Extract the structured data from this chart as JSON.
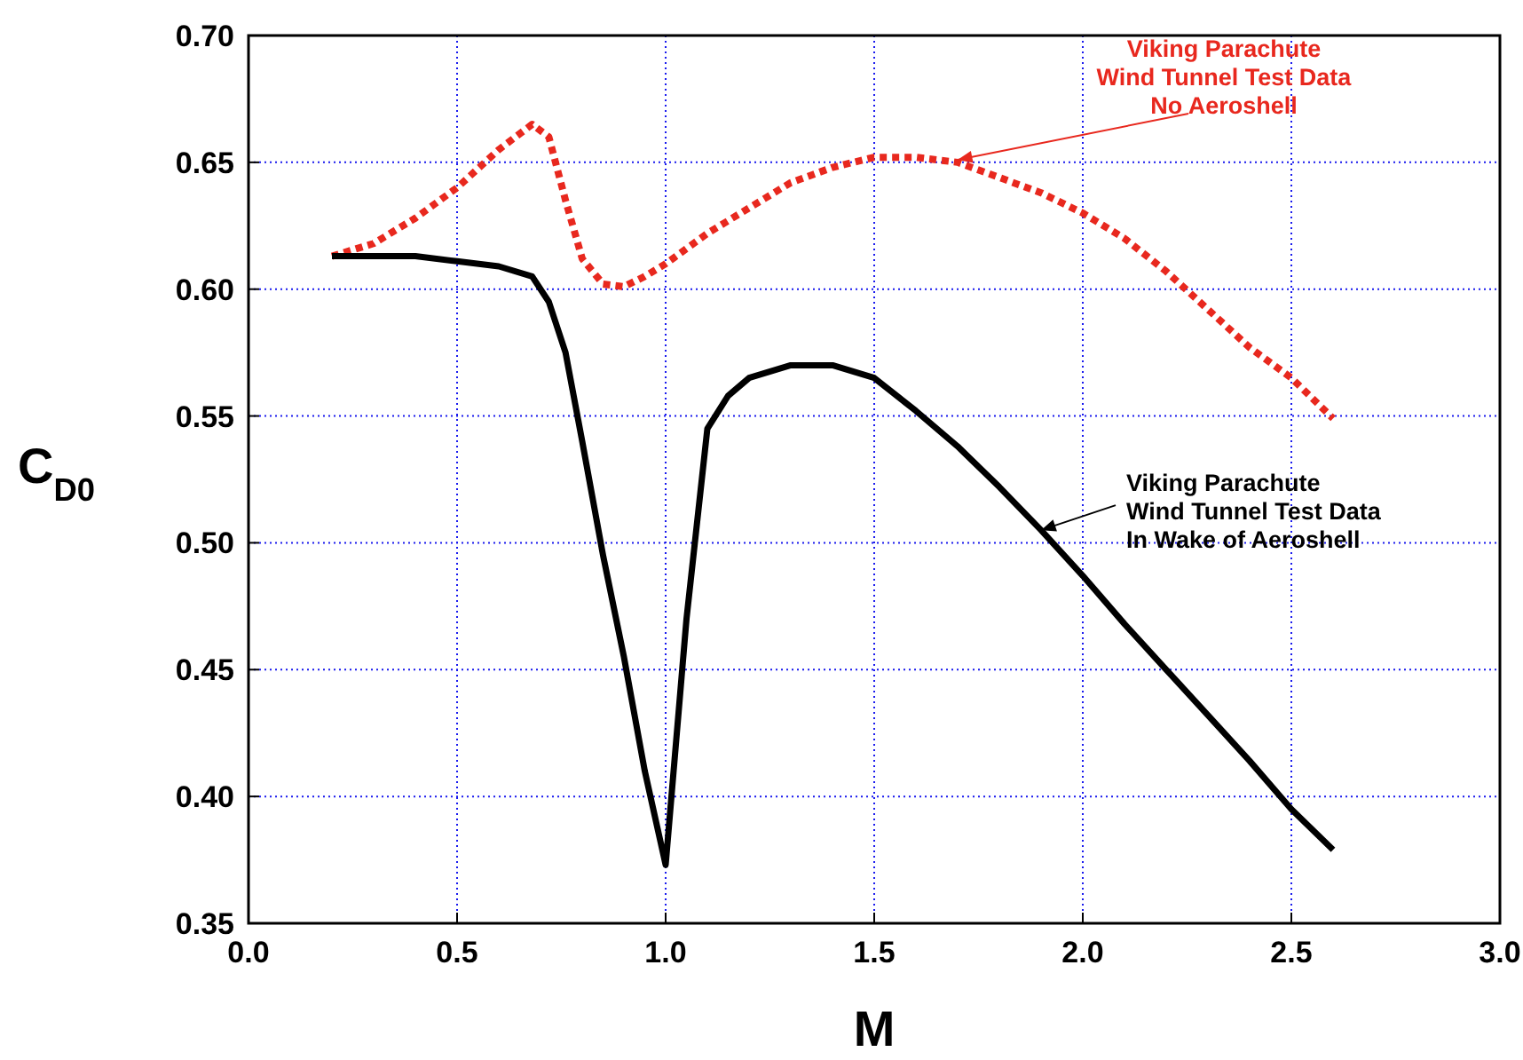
{
  "chart_data": {
    "type": "line",
    "xlabel": "M",
    "ylabel": "C$_{D0}$",
    "xlim": [
      0,
      3
    ],
    "ylim": [
      0.35,
      0.7
    ],
    "xticks": [
      {
        "value": 0,
        "label": "0.0"
      },
      {
        "value": 0.5,
        "label": "0.5"
      },
      {
        "value": 1,
        "label": "1.0"
      },
      {
        "value": 1.5,
        "label": "1.5"
      },
      {
        "value": 2,
        "label": "2.0"
      },
      {
        "value": 2.5,
        "label": "2.5"
      },
      {
        "value": 3,
        "label": "3.0"
      }
    ],
    "yticks": [
      {
        "value": 0.35,
        "label": "0.35"
      },
      {
        "value": 0.4,
        "label": "0.40"
      },
      {
        "value": 0.45,
        "label": "0.45"
      },
      {
        "value": 0.5,
        "label": "0.50"
      },
      {
        "value": 0.55,
        "label": "0.55"
      },
      {
        "value": 0.6,
        "label": "0.60"
      },
      {
        "value": 0.65,
        "label": "0.65"
      },
      {
        "value": 0.7,
        "label": "0.70"
      }
    ],
    "grid": true,
    "series": [
      {
        "color": "#e8281e",
        "line_style": "dotted",
        "x": [
          0.2,
          0.3,
          0.4,
          0.5,
          0.6,
          0.68,
          0.72,
          0.76,
          0.8,
          0.85,
          0.9,
          0.95,
          1.0,
          1.1,
          1.2,
          1.3,
          1.4,
          1.5,
          1.6,
          1.7,
          1.8,
          1.9,
          2.0,
          2.1,
          2.2,
          2.3,
          2.4,
          2.5,
          2.6
        ],
        "values": [
          0.613,
          0.618,
          0.628,
          0.64,
          0.655,
          0.665,
          0.66,
          0.635,
          0.612,
          0.602,
          0.601,
          0.605,
          0.61,
          0.622,
          0.632,
          0.642,
          0.648,
          0.652,
          0.652,
          0.65,
          0.644,
          0.638,
          0.63,
          0.62,
          0.607,
          0.592,
          0.577,
          0.565,
          0.549
        ]
      },
      {
        "color": "#000000",
        "line_style": "solid",
        "x": [
          0.2,
          0.4,
          0.5,
          0.6,
          0.68,
          0.72,
          0.76,
          0.8,
          0.85,
          0.9,
          0.95,
          1.0,
          1.05,
          1.1,
          1.15,
          1.2,
          1.3,
          1.4,
          1.5,
          1.6,
          1.7,
          1.8,
          1.9,
          2.0,
          2.1,
          2.2,
          2.3,
          2.4,
          2.5,
          2.6
        ],
        "values": [
          0.613,
          0.613,
          0.611,
          0.609,
          0.605,
          0.595,
          0.575,
          0.54,
          0.495,
          0.455,
          0.41,
          0.373,
          0.47,
          0.545,
          0.558,
          0.565,
          0.57,
          0.57,
          0.565,
          0.552,
          0.538,
          0.522,
          0.505,
          0.487,
          0.468,
          0.45,
          0.432,
          0.414,
          0.395,
          0.379
        ]
      }
    ],
    "annotations": [
      {
        "text": "Viking Parachute\nWind Tunnel Test Data\nNo Aeroshell",
        "x": 1.7,
        "y": 0.651
      },
      {
        "text": "Viking Parachute\nWind Tunnel Test Data\nIn Wake of Aeroshell",
        "x": 1.9,
        "y": 0.505
      }
    ]
  }
}
